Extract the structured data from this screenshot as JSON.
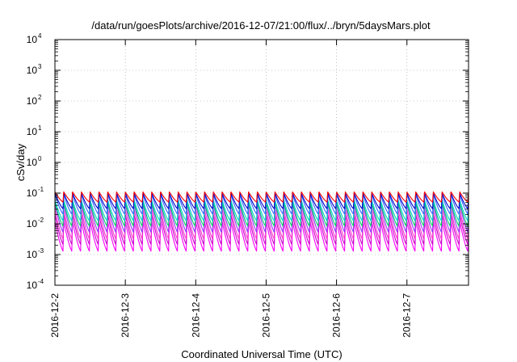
{
  "chart_data": {
    "type": "line",
    "title": "/data/run/goesPlots/archive/2016-12-07/21:00/flux/../bryn/5daysMars.plot",
    "xlabel": "Coordinated Universal Time (UTC)",
    "ylabel": "cSv/day",
    "x_start": "2016-12-02",
    "x_end": "2016-12-07T21:00",
    "xticks": [
      "2016-12-2",
      "2016-12-3",
      "2016-12-4",
      "2016-12-5",
      "2016-12-6",
      "2016-12-7"
    ],
    "y_scale": "log",
    "ylim": [
      0.0001,
      10000
    ],
    "yticks": [
      {
        "base": "10",
        "exp": "4"
      },
      {
        "base": "10",
        "exp": "3"
      },
      {
        "base": "10",
        "exp": "2"
      },
      {
        "base": "10",
        "exp": "1"
      },
      {
        "base": "10",
        "exp": "0"
      },
      {
        "base": "10",
        "exp": "-1"
      },
      {
        "base": "10",
        "exp": "-2"
      },
      {
        "base": "10",
        "exp": "-3"
      },
      {
        "base": "10",
        "exp": "-4"
      }
    ],
    "grid": true,
    "legend": "none",
    "period_hours": 3,
    "series": [
      {
        "color": "#ff00ff",
        "peak": 0.012,
        "trough": 0.0012
      },
      {
        "color": "#cc00cc",
        "peak": 0.02,
        "trough": 0.002
      },
      {
        "color": "#ff33cc",
        "peak": 0.03,
        "trough": 0.003
      },
      {
        "color": "#9933ff",
        "peak": 0.045,
        "trough": 0.005
      },
      {
        "color": "#00cc66",
        "peak": 0.05,
        "trough": 0.008
      },
      {
        "color": "#00cccc",
        "peak": 0.06,
        "trough": 0.012
      },
      {
        "color": "#3366ff",
        "peak": 0.09,
        "trough": 0.02
      },
      {
        "color": "#0000cc",
        "peak": 0.1,
        "trough": 0.03
      },
      {
        "color": "#ff0000",
        "peak": 0.11,
        "trough": 0.05
      }
    ]
  }
}
